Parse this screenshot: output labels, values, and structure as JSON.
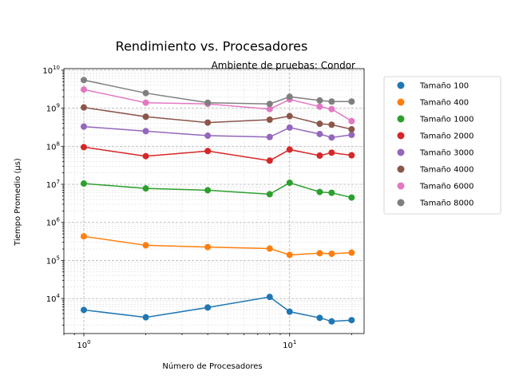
{
  "chart_data": {
    "type": "line",
    "title": "Rendimiento vs. Procesadores",
    "subtitle": "Ambiente de pruebas: Condor",
    "xlabel": "Número de Procesadores",
    "ylabel": "Tiempo Promedio (μs)",
    "xscale": "log",
    "yscale": "log",
    "xlim": [
      0.8,
      23
    ],
    "ylim": [
      1200,
      11000000000
    ],
    "grid": "major and minor, dashed",
    "legend_position": "outside right",
    "x_ticks": [
      {
        "value": 1,
        "base": "10",
        "exp": "0"
      },
      {
        "value": 10,
        "base": "10",
        "exp": "1"
      }
    ],
    "y_ticks": [
      {
        "value": 10000,
        "base": "10",
        "exp": "4"
      },
      {
        "value": 100000,
        "base": "10",
        "exp": "5"
      },
      {
        "value": 1000000,
        "base": "10",
        "exp": "6"
      },
      {
        "value": 10000000,
        "base": "10",
        "exp": "7"
      },
      {
        "value": 100000000,
        "base": "10",
        "exp": "8"
      },
      {
        "value": 1000000000,
        "base": "10",
        "exp": "9"
      },
      {
        "value": 10000000000,
        "base": "10",
        "exp": "10"
      }
    ],
    "x": [
      1,
      2,
      4,
      8,
      10,
      14,
      16,
      20
    ],
    "series": [
      {
        "name": "Tamaño 100",
        "color": "#1f77b4",
        "values": [
          5000,
          3200,
          5800,
          11000,
          4500,
          3100,
          2500,
          2700
        ]
      },
      {
        "name": "Tamaño 400",
        "color": "#ff7f0e",
        "values": [
          430000,
          250000,
          225000,
          205000,
          140000,
          155000,
          150000,
          160000
        ]
      },
      {
        "name": "Tamaño 1000",
        "color": "#2ca02c",
        "values": [
          10500000,
          7800000,
          7000000,
          5500000,
          11000000,
          6300000,
          6000000,
          4500000
        ]
      },
      {
        "name": "Tamaño 2000",
        "color": "#d62728",
        "values": [
          95000000,
          55000000,
          75000000,
          42000000,
          82000000,
          57000000,
          68000000,
          58000000
        ]
      },
      {
        "name": "Tamaño 3000",
        "color": "#9467bd",
        "values": [
          330000000,
          250000000,
          190000000,
          175000000,
          310000000,
          210000000,
          170000000,
          200000000
        ]
      },
      {
        "name": "Tamaño 4000",
        "color": "#8c564b",
        "values": [
          1050000000,
          600000000,
          420000000,
          500000000,
          620000000,
          390000000,
          370000000,
          280000000
        ]
      },
      {
        "name": "Tamaño 6000",
        "color": "#e377c2",
        "values": [
          3100000000,
          1400000000,
          1300000000,
          950000000,
          1700000000,
          1100000000,
          950000000,
          460000000
        ]
      },
      {
        "name": "Tamaño 8000",
        "color": "#7f7f7f",
        "values": [
          5500000000,
          2500000000,
          1400000000,
          1300000000,
          2000000000,
          1600000000,
          1500000000,
          1500000000
        ]
      }
    ]
  }
}
